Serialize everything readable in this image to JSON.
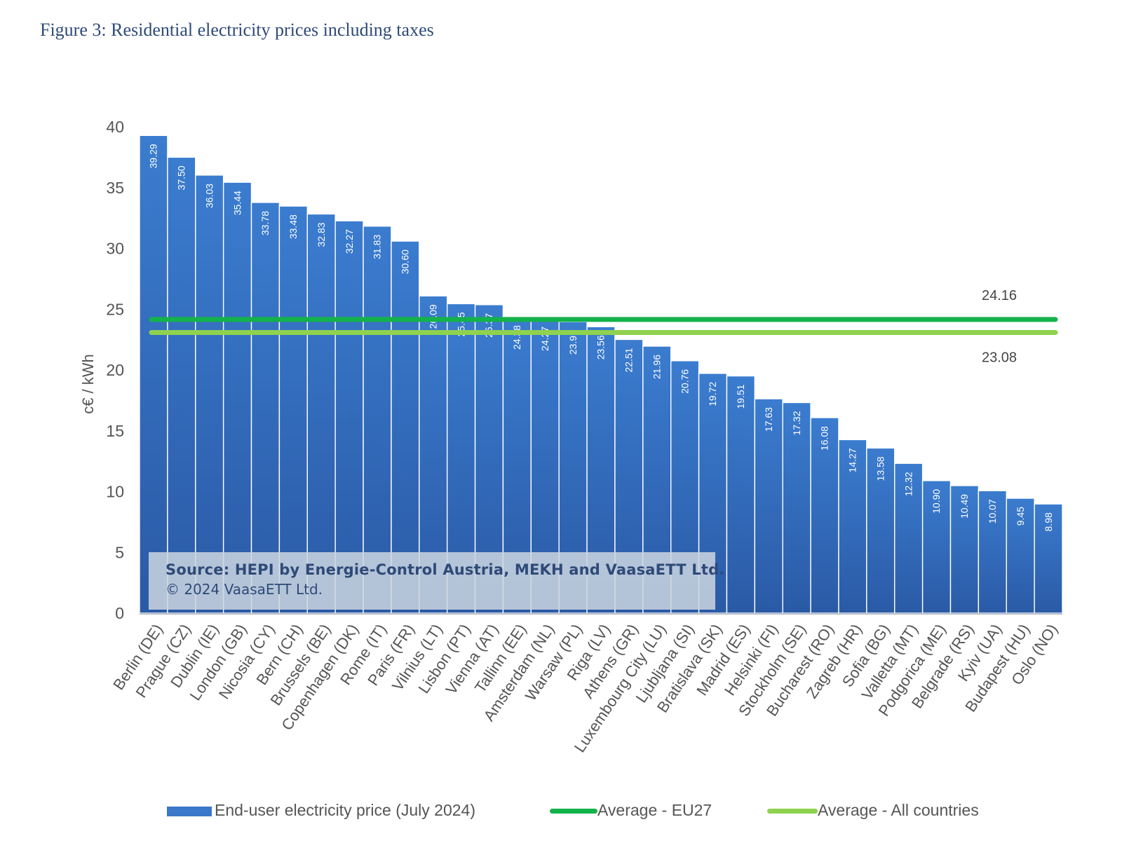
{
  "figure_title": "Figure 3: Residential electricity prices including taxes",
  "source_text": "Source: HEPI by Energie-Control Austria, MEKH and VaasaETT Ltd.",
  "copyright_text": "© 2024 VaasaETT Ltd.",
  "colors": {
    "bar": "#3b78c9",
    "bar_dark": "#2a5aa8",
    "eu27_line": "#14b24a",
    "all_countries_line": "#8ed24f",
    "title": "#2e4a78",
    "axis_text": "#555555"
  },
  "chart_data": {
    "type": "bar",
    "ylabel": "c€ / kWh",
    "ylim": [
      0,
      40
    ],
    "yticks": [
      0,
      5,
      10,
      15,
      20,
      25,
      30,
      35,
      40
    ],
    "categories": [
      "Berlin (DE)",
      "Prague (CZ)",
      "Dublin (IE)",
      "London (GB)",
      "Nicosia (CY)",
      "Bern (CH)",
      "Brussels (BE)",
      "Copenhagen (DK)",
      "Rome (IT)",
      "Paris (FR)",
      "Vilnius (LT)",
      "Lisbon (PT)",
      "Vienna (AT)",
      "Tallinn (EE)",
      "Amsterdam (NL)",
      "Warsaw (PL)",
      "Riga (LV)",
      "Athens (GR)",
      "Luxembourg City (LU)",
      "Ljubljana (SI)",
      "Bratislava (SK)",
      "Madrid (ES)",
      "Helsinki (FI)",
      "Stockholm (SE)",
      "Bucharest (RO)",
      "Zagreb (HR)",
      "Sofia (BG)",
      "Valletta (MT)",
      "Podgorica (ME)",
      "Belgrade (RS)",
      "Kyiv (UA)",
      "Budapest (HU)",
      "Oslo (NO)"
    ],
    "values": [
      39.29,
      37.5,
      36.03,
      35.44,
      33.78,
      33.48,
      32.83,
      32.27,
      31.83,
      30.6,
      26.09,
      25.45,
      25.37,
      24.38,
      24.27,
      23.97,
      23.56,
      22.51,
      21.96,
      20.76,
      19.72,
      19.51,
      17.63,
      17.32,
      16.08,
      14.27,
      13.58,
      12.32,
      10.9,
      10.49,
      10.07,
      9.45,
      8.98
    ],
    "value_labels": [
      "39.29",
      "37.50",
      "36.03",
      "35.44",
      "33.78",
      "33.48",
      "32.83",
      "32.27",
      "31.83",
      "30.60",
      "26.09",
      "25.45",
      "25.37",
      "24.38",
      "24.27",
      "23.97",
      "23.56",
      "22.51",
      "21.96",
      "20.76",
      "19.72",
      "19.51",
      "17.63",
      "17.32",
      "16.08",
      "14.27",
      "13.58",
      "12.32",
      "10.90",
      "10.49",
      "10.07",
      "9.45",
      "8.98"
    ],
    "reference_lines": [
      {
        "name": "Average - EU27",
        "value": 24.16,
        "label": "24.16",
        "color": "#14b24a"
      },
      {
        "name": "Average - All countries",
        "value": 23.08,
        "label": "23.08",
        "color": "#8ed24f"
      }
    ],
    "series": [
      {
        "name": "End-user electricity price (July 2024)",
        "color": "#3b78c9"
      }
    ],
    "legend": {
      "position": "bottom"
    },
    "grid": false
  }
}
